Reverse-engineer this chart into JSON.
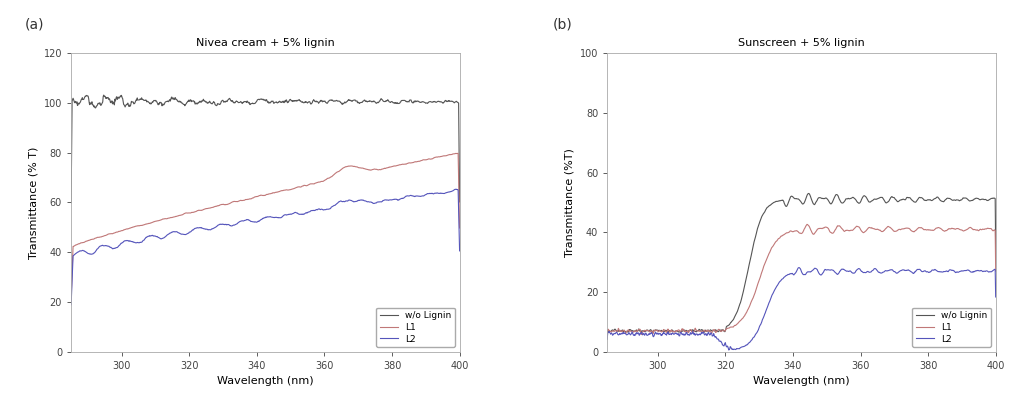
{
  "panel_a": {
    "title": "Nivea cream + 5% lignin",
    "xlabel": "Wavelength (nm)",
    "ylabel": "Transmittance (% T)",
    "xlim": [
      285,
      400
    ],
    "ylim": [
      0,
      120
    ],
    "yticks": [
      0,
      20,
      40,
      60,
      80,
      100,
      120
    ],
    "xticks": [
      300,
      320,
      340,
      360,
      380,
      400
    ],
    "wlo_color": "#555555",
    "L1_color": "#c07878",
    "L2_color": "#5555bb"
  },
  "panel_b": {
    "title": "Sunscreen + 5% lignin",
    "xlabel": "Wavelength (nm)",
    "ylabel": "Transmittance (%T)",
    "xlim": [
      285,
      400
    ],
    "ylim": [
      0,
      100
    ],
    "yticks": [
      0,
      20,
      40,
      60,
      80,
      100
    ],
    "xticks": [
      300,
      320,
      340,
      360,
      380,
      400
    ],
    "wlo_color": "#555555",
    "L1_color": "#c07878",
    "L2_color": "#5555bb"
  },
  "legend_labels": [
    "w/o Lignin",
    "L1",
    "L2"
  ],
  "label_a": "(a)",
  "label_b": "(b)",
  "fig_bg": "#ffffff",
  "axes_linewidth": 0.6,
  "line_linewidth": 0.8
}
